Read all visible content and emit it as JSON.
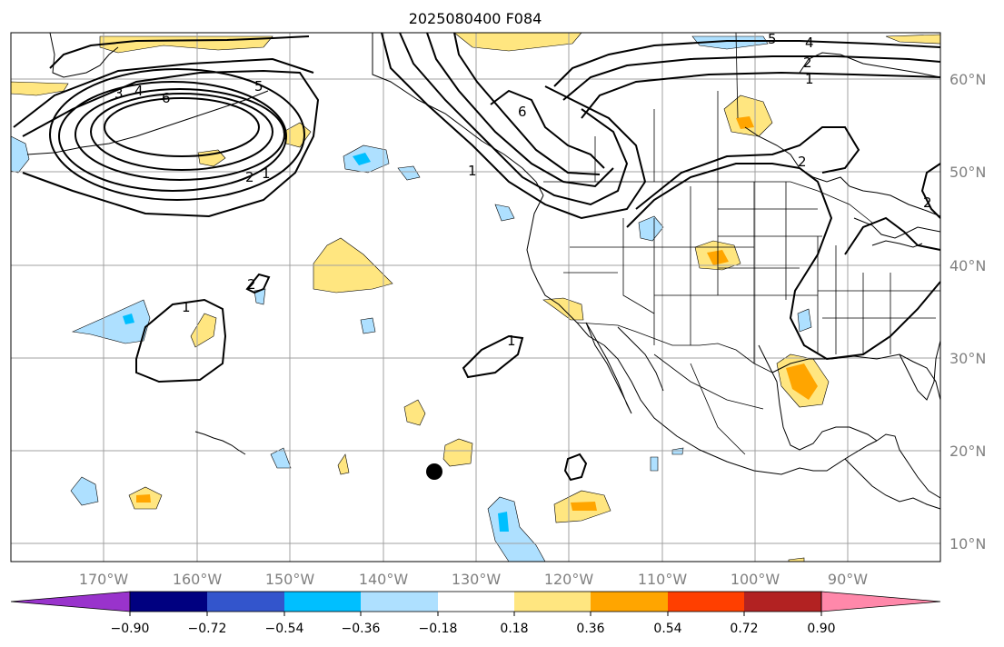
{
  "title": "2025080400 F084",
  "map": {
    "projection": "PlateCarree",
    "lon_range": [
      -180,
      -80
    ],
    "lat_range": [
      8,
      65
    ],
    "lat_labels": [
      "10°N",
      "20°N",
      "30°N",
      "40°N",
      "50°N",
      "60°N"
    ],
    "lon_labels": [
      "170°W",
      "160°W",
      "150°W",
      "140°W",
      "130°W",
      "120°W",
      "110°W",
      "100°W",
      "90°W"
    ],
    "gridlines": true,
    "marker": {
      "type": "black-dot",
      "lon": -134.5,
      "lat": 17.6
    },
    "contour_labels": [
      "3",
      "4",
      "6",
      "5",
      "2",
      "1",
      "1",
      "6",
      "5",
      "4",
      "2",
      "1",
      "2",
      "1",
      "2",
      "1",
      "2"
    ]
  },
  "colorbar": {
    "ticks": [
      "−0.90",
      "−0.72",
      "−0.54",
      "−0.36",
      "−0.18",
      "0.18",
      "0.36",
      "0.54",
      "0.72",
      "0.90"
    ],
    "colors": [
      "#9933cc",
      "#000080",
      "#3355cc",
      "#00bfff",
      "#aee0ff",
      "#ffffff",
      "#ffe680",
      "#ffa500",
      "#ff3f00",
      "#b22222",
      "#ff88aa"
    ],
    "extend": "both"
  }
}
